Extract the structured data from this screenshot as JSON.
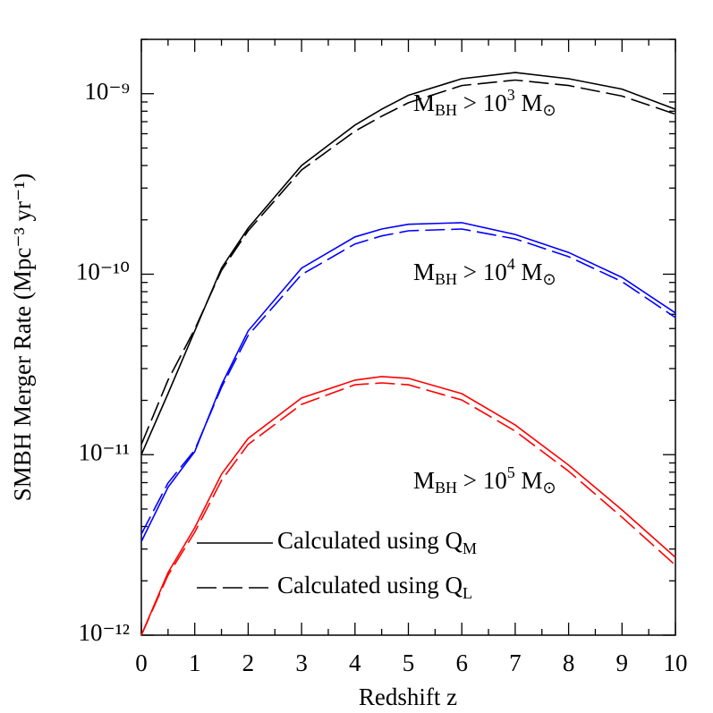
{
  "chart_data": {
    "type": "line",
    "xlabel": "Redshift z",
    "ylabel": "SMBH Merger Rate (Mpc⁻³ yr⁻¹)",
    "x": [
      0,
      0.5,
      1,
      1.5,
      2,
      3,
      4,
      4.5,
      5,
      6,
      7,
      8,
      9,
      10
    ],
    "series": [
      {
        "color": "#000000",
        "dash": false,
        "values": [
          1e-11,
          2.18e-11,
          4.85e-11,
          1.08e-10,
          1.8e-10,
          4e-10,
          6.7e-10,
          8.2e-10,
          9.8e-10,
          1.21e-09,
          1.31e-09,
          1.21e-09,
          1.06e-09,
          8.2e-10
        ]
      },
      {
        "color": "#000000",
        "dash": true,
        "values": [
          1.14e-11,
          2.59e-11,
          4.96e-11,
          1.05e-10,
          1.74e-10,
          3.78e-10,
          6.2e-10,
          7.5e-10,
          8.9e-10,
          1.11e-09,
          1.19e-09,
          1.11e-09,
          9.7e-10,
          7.7e-10
        ]
      },
      {
        "color": "#0000ff",
        "dash": false,
        "values": [
          3.3e-12,
          6.6e-12,
          1.04e-11,
          2.44e-11,
          4.85e-11,
          1.08e-10,
          1.61e-10,
          1.78e-10,
          1.89e-10,
          1.93e-10,
          1.66e-10,
          1.32e-10,
          9.6e-11,
          6.1e-11
        ]
      },
      {
        "color": "#0000ff",
        "dash": true,
        "values": [
          3.63e-12,
          6.97e-12,
          1.06e-11,
          2.36e-11,
          4.58e-11,
          9.95e-11,
          1.47e-10,
          1.63e-10,
          1.74e-10,
          1.78e-10,
          1.57e-10,
          1.25e-10,
          9.1e-11,
          5.75e-11
        ]
      },
      {
        "color": "#ff0000",
        "dash": false,
        "values": [
          1e-12,
          2.22e-12,
          3.94e-12,
          7.8e-12,
          1.23e-11,
          2.06e-11,
          2.59e-11,
          2.71e-11,
          2.65e-11,
          2.18e-11,
          1.46e-11,
          8.75e-12,
          4.94e-12,
          2.7e-12
        ]
      },
      {
        "color": "#ff0000",
        "dash": true,
        "values": [
          1e-12,
          2.15e-12,
          3.72e-12,
          7.2e-12,
          1.14e-11,
          1.9e-11,
          2.44e-11,
          2.5e-11,
          2.44e-11,
          2.01e-11,
          1.35e-11,
          8.1e-12,
          4.5e-12,
          2.44e-12
        ]
      }
    ],
    "annotations": [
      {
        "parts": [
          "M",
          "BH",
          " > 10",
          "3",
          " M",
          "⊙"
        ]
      },
      {
        "parts": [
          "M",
          "BH",
          " > 10",
          "4",
          " M",
          "⊙"
        ]
      },
      {
        "parts": [
          "M",
          "BH",
          " > 10",
          "5",
          " M",
          "⊙"
        ]
      }
    ],
    "legend": [
      {
        "text": "Calculated using Q",
        "sub": "M",
        "dash": false
      },
      {
        "text": "Calculated using Q",
        "sub": "L",
        "dash": true
      }
    ],
    "log_y": true,
    "xlim": [
      0,
      10
    ],
    "xticks": [
      0,
      1,
      2,
      3,
      4,
      5,
      6,
      7,
      8,
      9,
      10
    ],
    "xminorticks": [
      0.5,
      1.5,
      2.5,
      3.5,
      4.5,
      5.5,
      6.5,
      7.5,
      8.5,
      9.5
    ],
    "ylim": [
      1e-12,
      2e-09
    ],
    "yticks": [
      {
        "value": 1e-12,
        "label": "10⁻¹²"
      },
      {
        "value": 1e-11,
        "label": "10⁻¹¹"
      },
      {
        "value": 1e-10,
        "label": "10⁻¹⁰"
      },
      {
        "value": 1e-09,
        "label": "10⁻⁹"
      }
    ],
    "yminorticks": [
      2e-12,
      3e-12,
      4e-12,
      5e-12,
      6e-12,
      7e-12,
      8e-12,
      9e-12,
      2e-11,
      3e-11,
      4e-11,
      5e-11,
      6e-11,
      7e-11,
      8e-11,
      9e-11,
      2e-10,
      3e-10,
      4e-10,
      5e-10,
      6e-10,
      7e-10,
      8e-10,
      9e-10,
      2e-09
    ]
  }
}
